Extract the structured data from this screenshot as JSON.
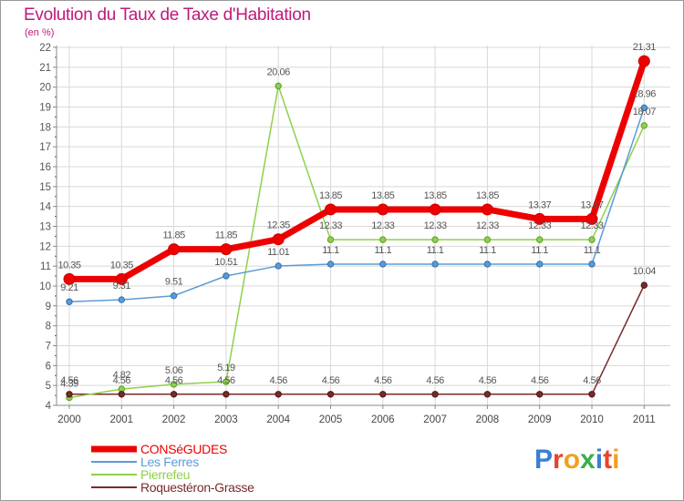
{
  "title": "Evolution du Taux de Taxe d'Habitation",
  "subtitle": "(en %)",
  "logo": [
    "P",
    "r",
    "o",
    "x",
    "i",
    "t",
    "i"
  ],
  "logo_colors": [
    "#3a7fd0",
    "#e8432a",
    "#f0a020",
    "#36b04a",
    "#3a7fd0",
    "#e8432a",
    "#f0a020"
  ],
  "chart_data": {
    "type": "line",
    "x": [
      "2000",
      "2001",
      "2002",
      "2003",
      "2004",
      "2005",
      "2006",
      "2007",
      "2008",
      "2009",
      "2010",
      "2011"
    ],
    "ylim": [
      4,
      22
    ],
    "yticks": [
      4,
      5,
      6,
      7,
      8,
      9,
      10,
      11,
      12,
      13,
      14,
      15,
      16,
      17,
      18,
      19,
      20,
      21,
      22
    ],
    "grid": true,
    "legend_position": "bottom-left",
    "series": [
      {
        "name": "CONSéGUDES",
        "color": "#ee0000",
        "values": [
          10.35,
          10.35,
          11.85,
          11.85,
          12.35,
          13.85,
          13.85,
          13.85,
          13.85,
          13.37,
          13.37,
          21.31
        ],
        "labels": [
          "10.35",
          "10.35",
          "11.85",
          "11.85",
          "12.35",
          "13.85",
          "13.85",
          "13.85",
          "13.85",
          "13.37",
          "13.37",
          "21.31"
        ]
      },
      {
        "name": "Les Ferres",
        "color": "#5b9bd5",
        "values": [
          9.21,
          9.31,
          9.51,
          10.51,
          11.01,
          11.1,
          11.1,
          11.1,
          11.1,
          11.1,
          11.1,
          18.96
        ],
        "labels": [
          "9.21",
          "9.31",
          "9.51",
          "10.51",
          "11.01",
          "11.1",
          "11.1",
          "11.1",
          "11.1",
          "11.1",
          "11.1",
          "18.96"
        ]
      },
      {
        "name": "Pierrefeu",
        "color": "#8ed14a",
        "values": [
          4.39,
          4.82,
          5.06,
          5.19,
          20.06,
          12.33,
          12.33,
          12.33,
          12.33,
          12.33,
          12.33,
          18.07
        ],
        "labels": [
          "4.39",
          "4.82",
          "5.06",
          "5.19",
          "20.06",
          "12.33",
          "12.33",
          "12.33",
          "12.33",
          "12.33",
          "12.33",
          "18.07"
        ]
      },
      {
        "name": "Roquestéron-Grasse",
        "color": "#7a2a2a",
        "values": [
          4.56,
          4.56,
          4.56,
          4.56,
          4.56,
          4.56,
          4.56,
          4.56,
          4.56,
          4.56,
          4.56,
          10.04
        ],
        "labels": [
          "4.56",
          "4.56",
          "4.56",
          "4.56",
          "4.56",
          "4.56",
          "4.56",
          "4.56",
          "4.56",
          "4.56",
          "4.56",
          "10.04"
        ]
      }
    ]
  }
}
